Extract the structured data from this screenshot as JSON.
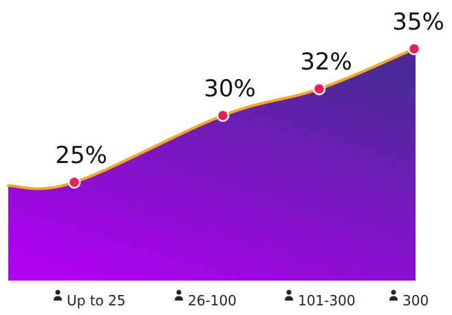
{
  "chart_data": {
    "type": "area",
    "categories": [
      "Up to 25",
      "26-100",
      "101-300",
      "300"
    ],
    "values": [
      25,
      30,
      32,
      35
    ],
    "value_labels": [
      "25%",
      "30%",
      "32%",
      "35%"
    ],
    "unit": "%",
    "category_icon": "person-icon",
    "grid": false,
    "legend": "none",
    "colors": {
      "area_top": "#4b2a97",
      "area_bottom": "#b000f2",
      "line": "#f5a623",
      "point": "#ea1f5a",
      "point_stroke": "#ffffff",
      "label": "#111111",
      "category_label": "#1f2433"
    }
  }
}
